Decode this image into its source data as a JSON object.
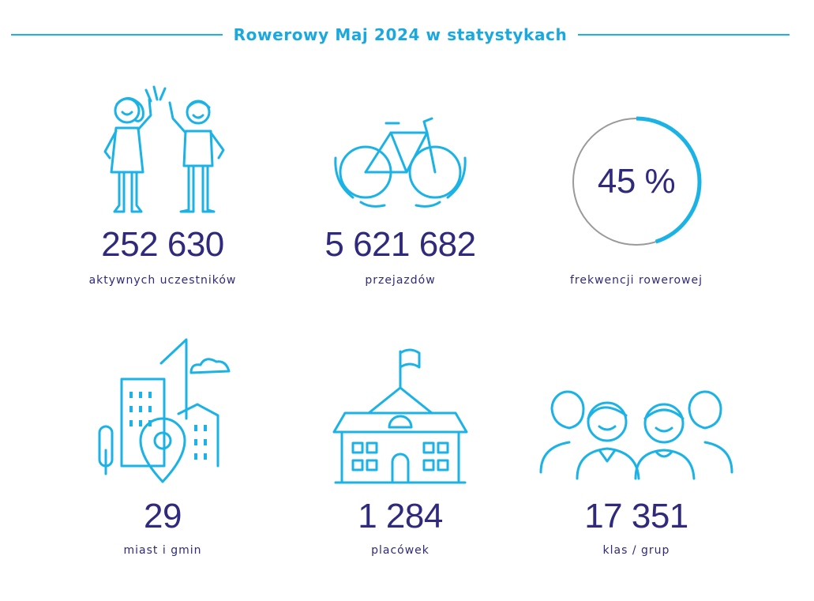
{
  "header": {
    "title": "Rowerowy Maj 2024 w statystykach"
  },
  "colors": {
    "accent": "#1bb2e6",
    "text": "#2f2a7c",
    "ring_gray": "#9a9a9a"
  },
  "stats": [
    {
      "icon": "high-five-kids-icon",
      "value": "252 630",
      "label": "aktywnych uczestników"
    },
    {
      "icon": "bicycle-icon",
      "value": "5 621 682",
      "label": "przejazdów"
    },
    {
      "icon": "progress-ring-icon",
      "value": "45 %",
      "label": "frekwencji rowerowej",
      "percent": 45
    },
    {
      "icon": "city-location-pin-icon",
      "value": "29",
      "label": "miast i gmin"
    },
    {
      "icon": "school-building-icon",
      "value": "1 284",
      "label": "placówek"
    },
    {
      "icon": "group-of-people-icon",
      "value": "17 351",
      "label": "klas / grup"
    }
  ]
}
